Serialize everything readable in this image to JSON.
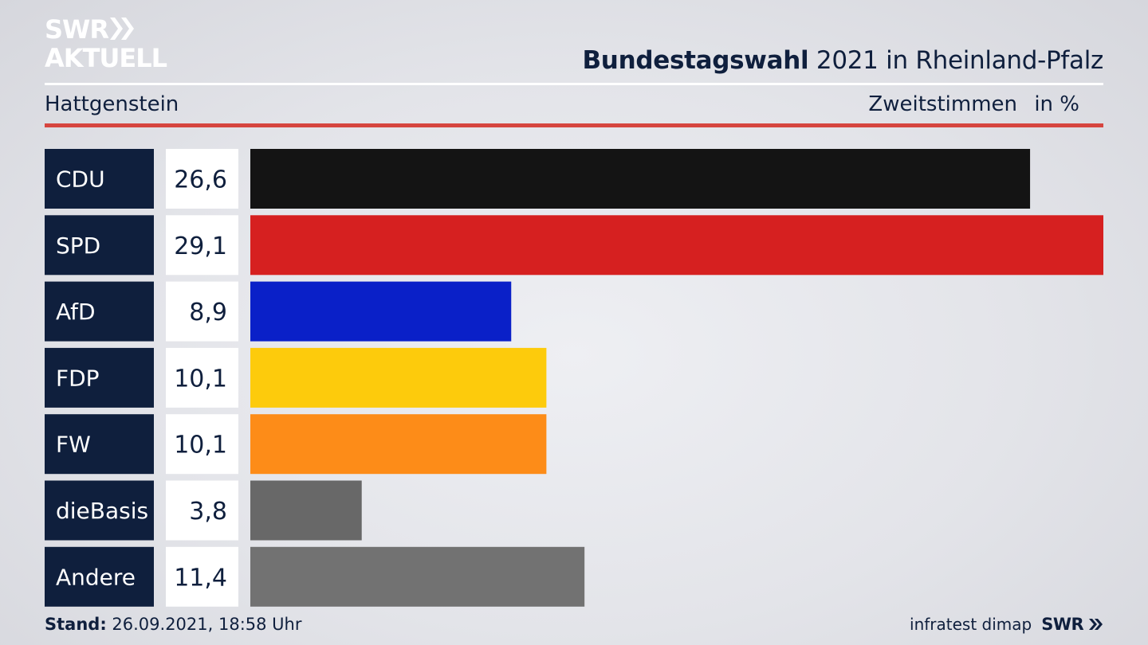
{
  "brand": {
    "line1": "SWR",
    "line2": "AKTUELL"
  },
  "header": {
    "title_bold": "Bundestagswahl",
    "title_rest": " 2021 in Rheinland-Pfalz",
    "region": "Hattgenstein",
    "metric": "Zweitstimmen",
    "unit": "in %"
  },
  "chart_data": {
    "type": "bar",
    "orientation": "horizontal",
    "categories": [
      "CDU",
      "SPD",
      "AfD",
      "FDP",
      "FW",
      "dieBasis",
      "Andere"
    ],
    "values": [
      26.6,
      29.1,
      8.9,
      10.1,
      10.1,
      3.8,
      11.4
    ],
    "value_labels": [
      "26,6",
      "29,1",
      "8,9",
      "10,1",
      "10,1",
      "3,8",
      "11,4"
    ],
    "colors": [
      "#141414",
      "#d62020",
      "#0a20c8",
      "#fdcb0c",
      "#fd8c18",
      "#686868",
      "#727272"
    ],
    "xlim": [
      0,
      29.1
    ],
    "grid": false,
    "legend": "none"
  },
  "footer": {
    "stand_label": "Stand:",
    "stand_value": " 26.09.2021, 18:58 Uhr",
    "source": "infratest dimap",
    "brand_small": "SWR"
  },
  "colors": {
    "navy": "#0f1f3d",
    "accent_red": "#d6453f",
    "label_box": "#0f1f3d",
    "value_box": "#ffffff"
  }
}
